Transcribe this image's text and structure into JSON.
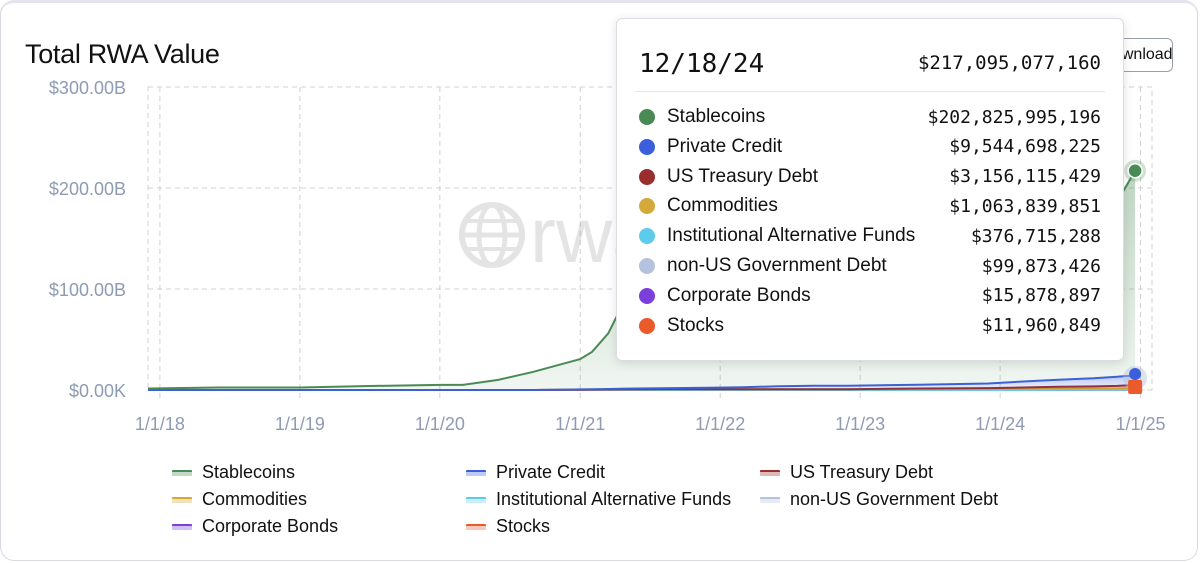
{
  "header": {
    "title": "Total RWA Value",
    "download_label": "Download"
  },
  "watermark": "rwa.xyz",
  "chart_data": {
    "type": "area",
    "stacked": true,
    "title": "Total RWA Value",
    "xlabel": "",
    "ylabel": "",
    "x_ticks": [
      "1/1/18",
      "1/1/19",
      "1/1/20",
      "1/1/21",
      "1/1/22",
      "1/1/23",
      "1/1/24",
      "1/1/25"
    ],
    "y_ticks": [
      "$0.00K",
      "$100.00B",
      "$200.00B",
      "$300.00B"
    ],
    "ylim": [
      0,
      300
    ],
    "y_unit": "billions USD",
    "grid": true,
    "legend_position": "bottom",
    "x_dates": [
      "2017-12-01",
      "2018-06-01",
      "2019-01-01",
      "2019-07-01",
      "2020-01-01",
      "2020-03-01",
      "2020-06-01",
      "2020-09-01",
      "2020-12-01",
      "2021-01-01",
      "2021-02-01",
      "2021-03-15",
      "2021-05-01",
      "2021-08-01",
      "2021-12-01",
      "2022-03-01",
      "2022-06-01",
      "2022-09-01",
      "2022-12-01",
      "2023-06-01",
      "2023-12-01",
      "2024-03-01",
      "2024-06-01",
      "2024-09-01",
      "2024-11-01",
      "2024-11-20",
      "2024-12-18"
    ],
    "series": [
      {
        "name": "Stablecoins",
        "color": "#4a8a55",
        "values": [
          1.5,
          2.5,
          2.5,
          4,
          5,
          5,
          10,
          18,
          27,
          30,
          37,
          55,
          90,
          110,
          140,
          150,
          135,
          135,
          125,
          120,
          125,
          140,
          155,
          165,
          175,
          185,
          202.8
        ]
      },
      {
        "name": "Private Credit",
        "color": "#3b5fdc",
        "values": [
          0,
          0,
          0,
          0,
          0,
          0,
          0,
          0,
          0.2,
          0.3,
          0.4,
          0.5,
          0.8,
          1,
          1.5,
          2,
          3,
          3.5,
          3.5,
          3.7,
          4.5,
          6,
          7,
          8,
          9,
          9.3,
          9.5
        ]
      },
      {
        "name": "US Treasury Debt",
        "color": "#9a2d2d",
        "values": [
          0,
          0,
          0,
          0,
          0,
          0,
          0,
          0,
          0,
          0,
          0,
          0,
          0,
          0,
          0,
          0,
          0,
          0,
          0.1,
          0.6,
          0.9,
          1.3,
          1.9,
          2.2,
          2.6,
          2.9,
          3.2
        ]
      },
      {
        "name": "Commodities",
        "color": "#d4a93a",
        "values": [
          0,
          0,
          0,
          0,
          0,
          0,
          0,
          0,
          0.2,
          0.3,
          0.4,
          0.5,
          0.6,
          0.7,
          0.8,
          0.8,
          0.7,
          0.7,
          0.7,
          0.8,
          0.9,
          0.9,
          1,
          1,
          1,
          1.05,
          1.06
        ]
      },
      {
        "name": "Institutional Alternative Funds",
        "color": "#5ccbec",
        "values": [
          0,
          0,
          0,
          0,
          0,
          0,
          0,
          0,
          0,
          0,
          0,
          0,
          0,
          0,
          0,
          0,
          0,
          0,
          0,
          0.05,
          0.1,
          0.2,
          0.25,
          0.3,
          0.33,
          0.36,
          0.38
        ]
      },
      {
        "name": "non-US Government Debt",
        "color": "#b5c2dd",
        "values": [
          0,
          0,
          0,
          0,
          0,
          0,
          0,
          0,
          0,
          0,
          0,
          0,
          0,
          0,
          0,
          0,
          0,
          0,
          0,
          0,
          0.02,
          0.04,
          0.06,
          0.08,
          0.09,
          0.1,
          0.1
        ]
      },
      {
        "name": "Corporate Bonds",
        "color": "#7b3fdc",
        "values": [
          0,
          0,
          0,
          0,
          0,
          0,
          0,
          0,
          0,
          0,
          0,
          0,
          0,
          0,
          0,
          0,
          0,
          0,
          0,
          0,
          0,
          0.005,
          0.01,
          0.012,
          0.014,
          0.015,
          0.016
        ]
      },
      {
        "name": "Stocks",
        "color": "#ea5a2a",
        "values": [
          0,
          0,
          0,
          0,
          0,
          0,
          0,
          0,
          0,
          0,
          0,
          0,
          0,
          0,
          0,
          0,
          0,
          0,
          0,
          0,
          0,
          0,
          0.005,
          0.008,
          0.01,
          0.011,
          0.012
        ]
      }
    ]
  },
  "tooltip": {
    "date": "12/18/24",
    "total": "$217,095,077,160",
    "rows": [
      {
        "name": "Stablecoins",
        "value": "$202,825,995,196",
        "color": "#4a8a55"
      },
      {
        "name": "Private Credit",
        "value": "$9,544,698,225",
        "color": "#3b5fdc"
      },
      {
        "name": "US Treasury Debt",
        "value": "$3,156,115,429",
        "color": "#9a2d2d"
      },
      {
        "name": "Commodities",
        "value": "$1,063,839,851",
        "color": "#d4a93a"
      },
      {
        "name": "Institutional Alternative Funds",
        "value": "$376,715,288",
        "color": "#5ccbec"
      },
      {
        "name": "non-US Government Debt",
        "value": "$99,873,426",
        "color": "#b5c2dd"
      },
      {
        "name": "Corporate Bonds",
        "value": "$15,878,897",
        "color": "#7b3fdc"
      },
      {
        "name": "Stocks",
        "value": "$11,960,849",
        "color": "#ea5a2a"
      }
    ]
  },
  "legend": [
    {
      "name": "Stablecoins",
      "color": "#4a8a55"
    },
    {
      "name": "Private Credit",
      "color": "#3b5fdc"
    },
    {
      "name": "US Treasury Debt",
      "color": "#9a2d2d"
    },
    {
      "name": "Commodities",
      "color": "#d4a93a"
    },
    {
      "name": "Institutional Alternative Funds",
      "color": "#5ccbec"
    },
    {
      "name": "non-US Government Debt",
      "color": "#b5c2dd"
    },
    {
      "name": "Corporate Bonds",
      "color": "#7b3fdc"
    },
    {
      "name": "Stocks",
      "color": "#ea5a2a"
    }
  ]
}
